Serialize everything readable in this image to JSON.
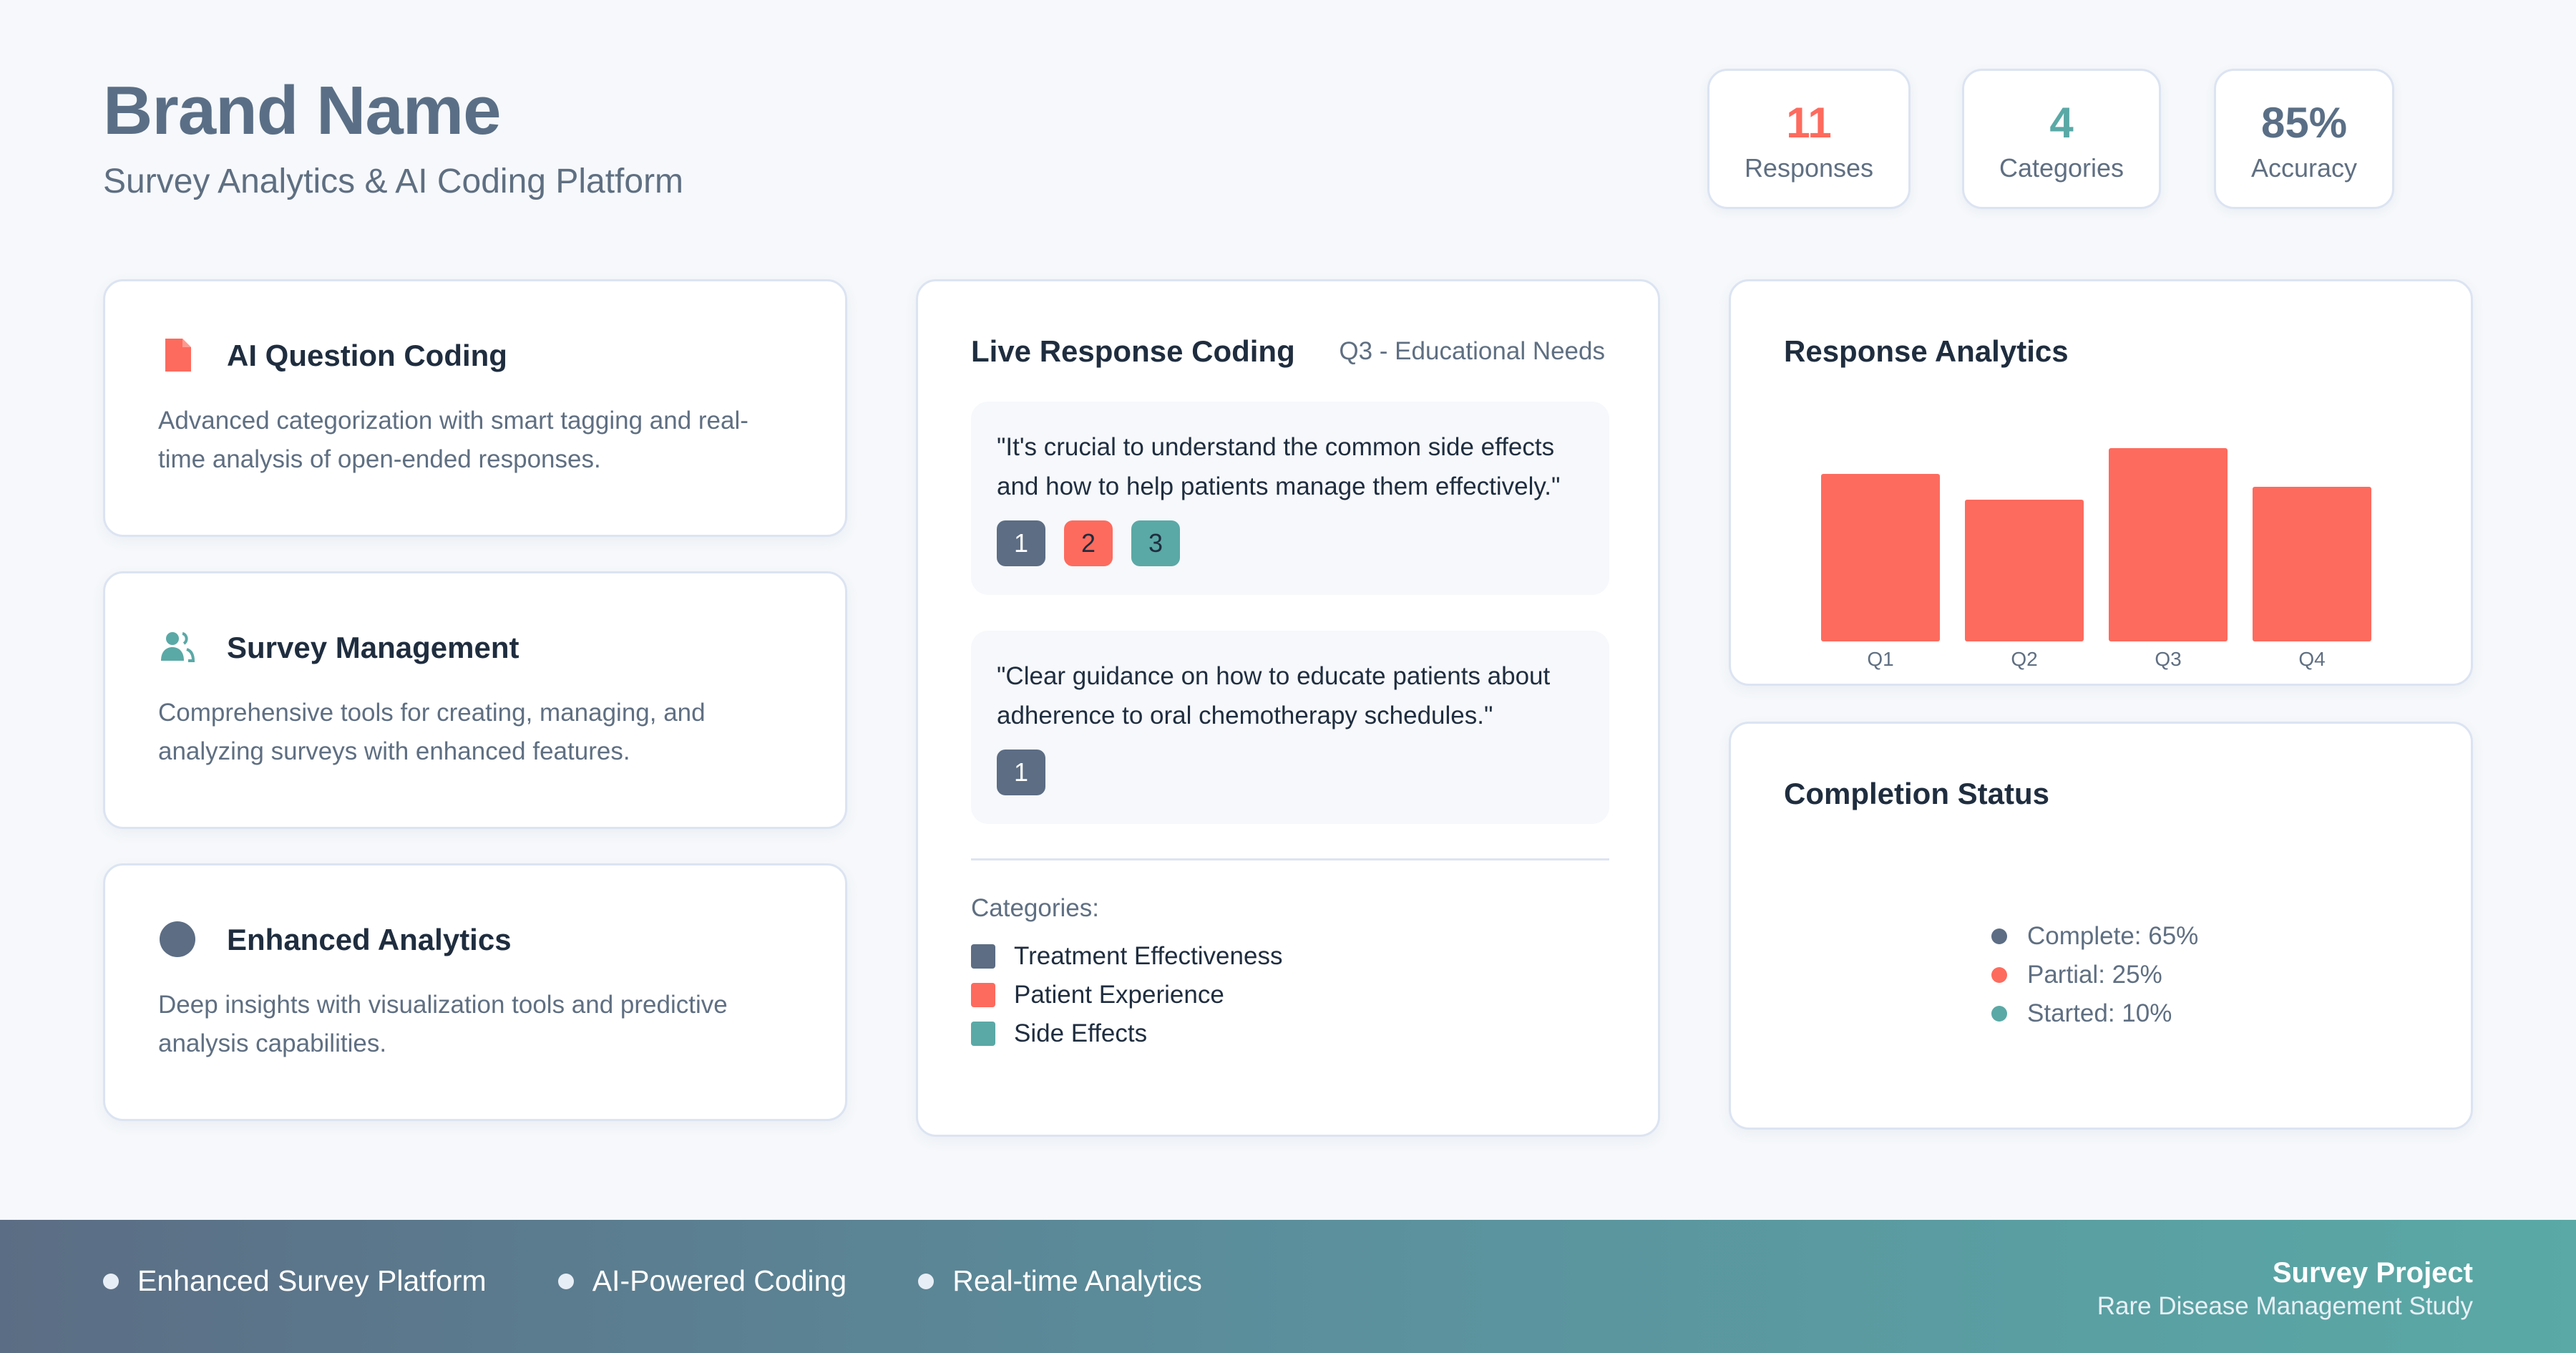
{
  "header": {
    "brand": "Brand Name",
    "subtitle": "Survey Analytics & AI Coding Platform"
  },
  "stats": [
    {
      "value": "11",
      "label": "Responses",
      "color": "#fd6b5e"
    },
    {
      "value": "4",
      "label": "Categories",
      "color": "#5aa9a6"
    },
    {
      "value": "85%",
      "label": "Accuracy",
      "color": "#5a6f86"
    }
  ],
  "features": [
    {
      "icon": "document-icon",
      "title": "AI Question Coding",
      "desc": "Advanced categorization with smart tagging and real-time analysis of open-ended responses."
    },
    {
      "icon": "users-icon",
      "title": "Survey Management",
      "desc": "Comprehensive tools for creating, managing, and analyzing surveys with enhanced features."
    },
    {
      "icon": "circle-icon",
      "title": "Enhanced Analytics",
      "desc": "Deep insights with visualization tools and predictive analysis capabilities."
    }
  ],
  "live": {
    "title": "Live Response Coding",
    "question": "Q3 - Educational Needs",
    "responses": [
      {
        "text": "\"It's crucial to understand the common side effects and how to help patients manage them effectively.\"",
        "tags": [
          "1",
          "2",
          "3"
        ]
      },
      {
        "text": "\"Clear guidance on how to educate patients about adherence to oral chemotherapy schedules.\"",
        "tags": [
          "1"
        ]
      }
    ],
    "categories_heading": "Categories:",
    "categories": [
      {
        "label": "Treatment Effectiveness",
        "color": "#5c6d84"
      },
      {
        "label": "Patient Experience",
        "color": "#fd6b5e"
      },
      {
        "label": "Side Effects",
        "color": "#5aa9a6"
      }
    ]
  },
  "analytics": {
    "title": "Response Analytics"
  },
  "chart_data": {
    "type": "bar",
    "categories": [
      "Q1",
      "Q2",
      "Q3",
      "Q4"
    ],
    "values": [
      65,
      55,
      75,
      60
    ],
    "ylim": [
      0,
      100
    ],
    "color": "#fd6b5e",
    "grid": false
  },
  "completion": {
    "title": "Completion Status",
    "items": [
      {
        "label": "Complete: 65%",
        "color": "#5c6d84"
      },
      {
        "label": "Partial: 25%",
        "color": "#fd6b5e"
      },
      {
        "label": "Started: 10%",
        "color": "#5aa9a6"
      }
    ]
  },
  "footer": {
    "items": [
      "Enhanced Survey Platform",
      "AI-Powered Coding",
      "Real-time Analytics"
    ],
    "project_title": "Survey Project",
    "project_sub": "Rare Disease Management Study"
  }
}
